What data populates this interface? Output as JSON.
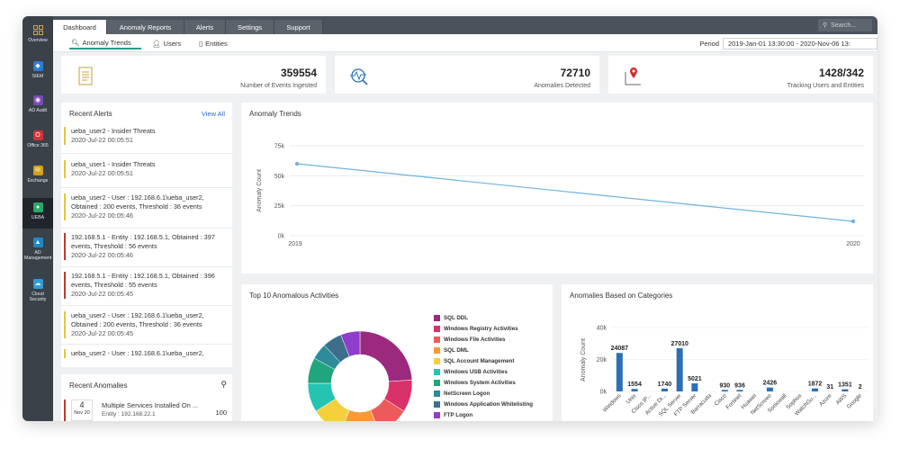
{
  "sidebar": {
    "items": [
      {
        "label": "Overview",
        "icon": "grid-icon"
      },
      {
        "label": "SIEM",
        "icon": "shield-icon"
      },
      {
        "label": "AD Audit",
        "icon": "audit-icon"
      },
      {
        "label": "Office 365",
        "icon": "office-icon"
      },
      {
        "label": "Exchange",
        "icon": "exchange-icon"
      },
      {
        "label": "UEBA",
        "icon": "ueba-icon"
      },
      {
        "label": "AD Management",
        "icon": "ad-management-icon"
      },
      {
        "label": "Cloud Security",
        "icon": "cloud-icon"
      }
    ]
  },
  "topbar": {
    "tabs": [
      "Dashboard",
      "Anomaly Reports",
      "Alerts",
      "Settings",
      "Support"
    ],
    "search_placeholder": "Search..."
  },
  "subnav": {
    "tabs": [
      "Anomaly Trends",
      "Users",
      "Entities"
    ],
    "period_label": "Period",
    "period_value": "2019-Jan-01 13:30:00 - 2020-Nov-06 13:"
  },
  "kpis": [
    {
      "value": "359554",
      "label": "Number of Events Ingested"
    },
    {
      "value": "72710",
      "label": "Anomalies Detected"
    },
    {
      "value": "1428/342",
      "label": "Tracking Users and Entities"
    }
  ],
  "recent_alerts": {
    "title": "Recent Alerts",
    "view_all": "View All",
    "items": [
      {
        "text": "ueba_user2 - Insider Threats",
        "time": "2020-Jul-22 00:05:51",
        "color": "#e8c338"
      },
      {
        "text": "ueba_user1 - Insider Threats",
        "time": "2020-Jul-22 00:05:51",
        "color": "#e8c338"
      },
      {
        "text": "ueba_user2 - User : 192.168.6.1\\ueba_user2, Obtained : 200 events, Threshold : 36 events",
        "time": "2020-Jul-22 00:05:46",
        "color": "#e8c338"
      },
      {
        "text": "192.168.5.1 - Entity : 192.168.5.1, Obtained : 397 events, Threshold : 56 events",
        "time": "2020-Jul-22 00:05:46",
        "color": "#c0392b"
      },
      {
        "text": "192.168.5.1 - Entity : 192.168.5.1, Obtained : 396 events, Threshold : 55 events",
        "time": "2020-Jul-22 00:05:45",
        "color": "#c0392b"
      },
      {
        "text": "ueba_user2 - User : 192.168.6.1\\ueba_user2, Obtained : 200 events, Threshold : 36 events",
        "time": "2020-Jul-22 00:05:45",
        "color": "#e8c338"
      },
      {
        "text": "ueba_user2 - User : 192.168.6.1\\ueba_user2,",
        "time": "",
        "color": "#e8c338"
      }
    ]
  },
  "recent_anomalies": {
    "title": "Recent Anomalies",
    "items": [
      {
        "day": "4",
        "month": "Nov 20",
        "title": "Multiple Services Installed On ...",
        "entity": "Entity : 192.168.22.1",
        "count": "100"
      }
    ]
  },
  "anomaly_trends": {
    "title": "Anomaly Trends",
    "chart_data": {
      "type": "line",
      "x": [
        "2019",
        "2020"
      ],
      "values": [
        60000,
        12000
      ],
      "ylabel": "Anomaly Count",
      "ylim": [
        0,
        75000
      ],
      "yticks": [
        "0k",
        "25k",
        "50k",
        "75k"
      ],
      "color": "#6fb3e0"
    }
  },
  "top_activities": {
    "title": "Top 10 Anomalous Activities",
    "chart_data": {
      "type": "pie",
      "categories": [
        "SQL DDL",
        "Windows Registry Activities",
        "Windows File Activities",
        "SQL DML",
        "SQL Account Management",
        "Windows USB Activities",
        "Windows System Activities",
        "NetScreen Logon",
        "Windows Application Whitelisting",
        "FTP Logon"
      ],
      "values": [
        24,
        10,
        10,
        12,
        10,
        9,
        8,
        5,
        6,
        6
      ],
      "colors": [
        "#9b2a7e",
        "#d9316a",
        "#ec5b5b",
        "#f59a37",
        "#f4d03f",
        "#25c4b2",
        "#20a57c",
        "#2e8b9a",
        "#3d6f8c",
        "#8e3ec9"
      ]
    }
  },
  "categories_chart": {
    "title": "Anomalies Based on Categories",
    "chart_data": {
      "type": "bar",
      "categories": [
        "Windows",
        "Unix",
        "Cisco IP...",
        "Active Di...",
        "SQL Server",
        "FTP Server",
        "Barracuda",
        "Cisco",
        "Fortinet",
        "Huawei",
        "NetScreen",
        "Sonicwall",
        "Sophos",
        "WatchGu...",
        "Azure",
        "AWS",
        "Google"
      ],
      "values": [
        24087,
        1554,
        0,
        1740,
        27010,
        5021,
        0,
        930,
        936,
        0,
        2426,
        0,
        0,
        1872,
        31,
        1351,
        2
      ],
      "labels": [
        "24087",
        "1554",
        "",
        "1740",
        "27010",
        "5021",
        "",
        "930",
        "936",
        "",
        "2426",
        "",
        "",
        "1872",
        "31",
        "1351",
        "2"
      ],
      "ylabel": "Anomaly Count",
      "ylim": [
        0,
        40000
      ],
      "yticks": [
        "0k",
        "20k",
        "40k"
      ],
      "color": "#2b6fb5"
    }
  }
}
